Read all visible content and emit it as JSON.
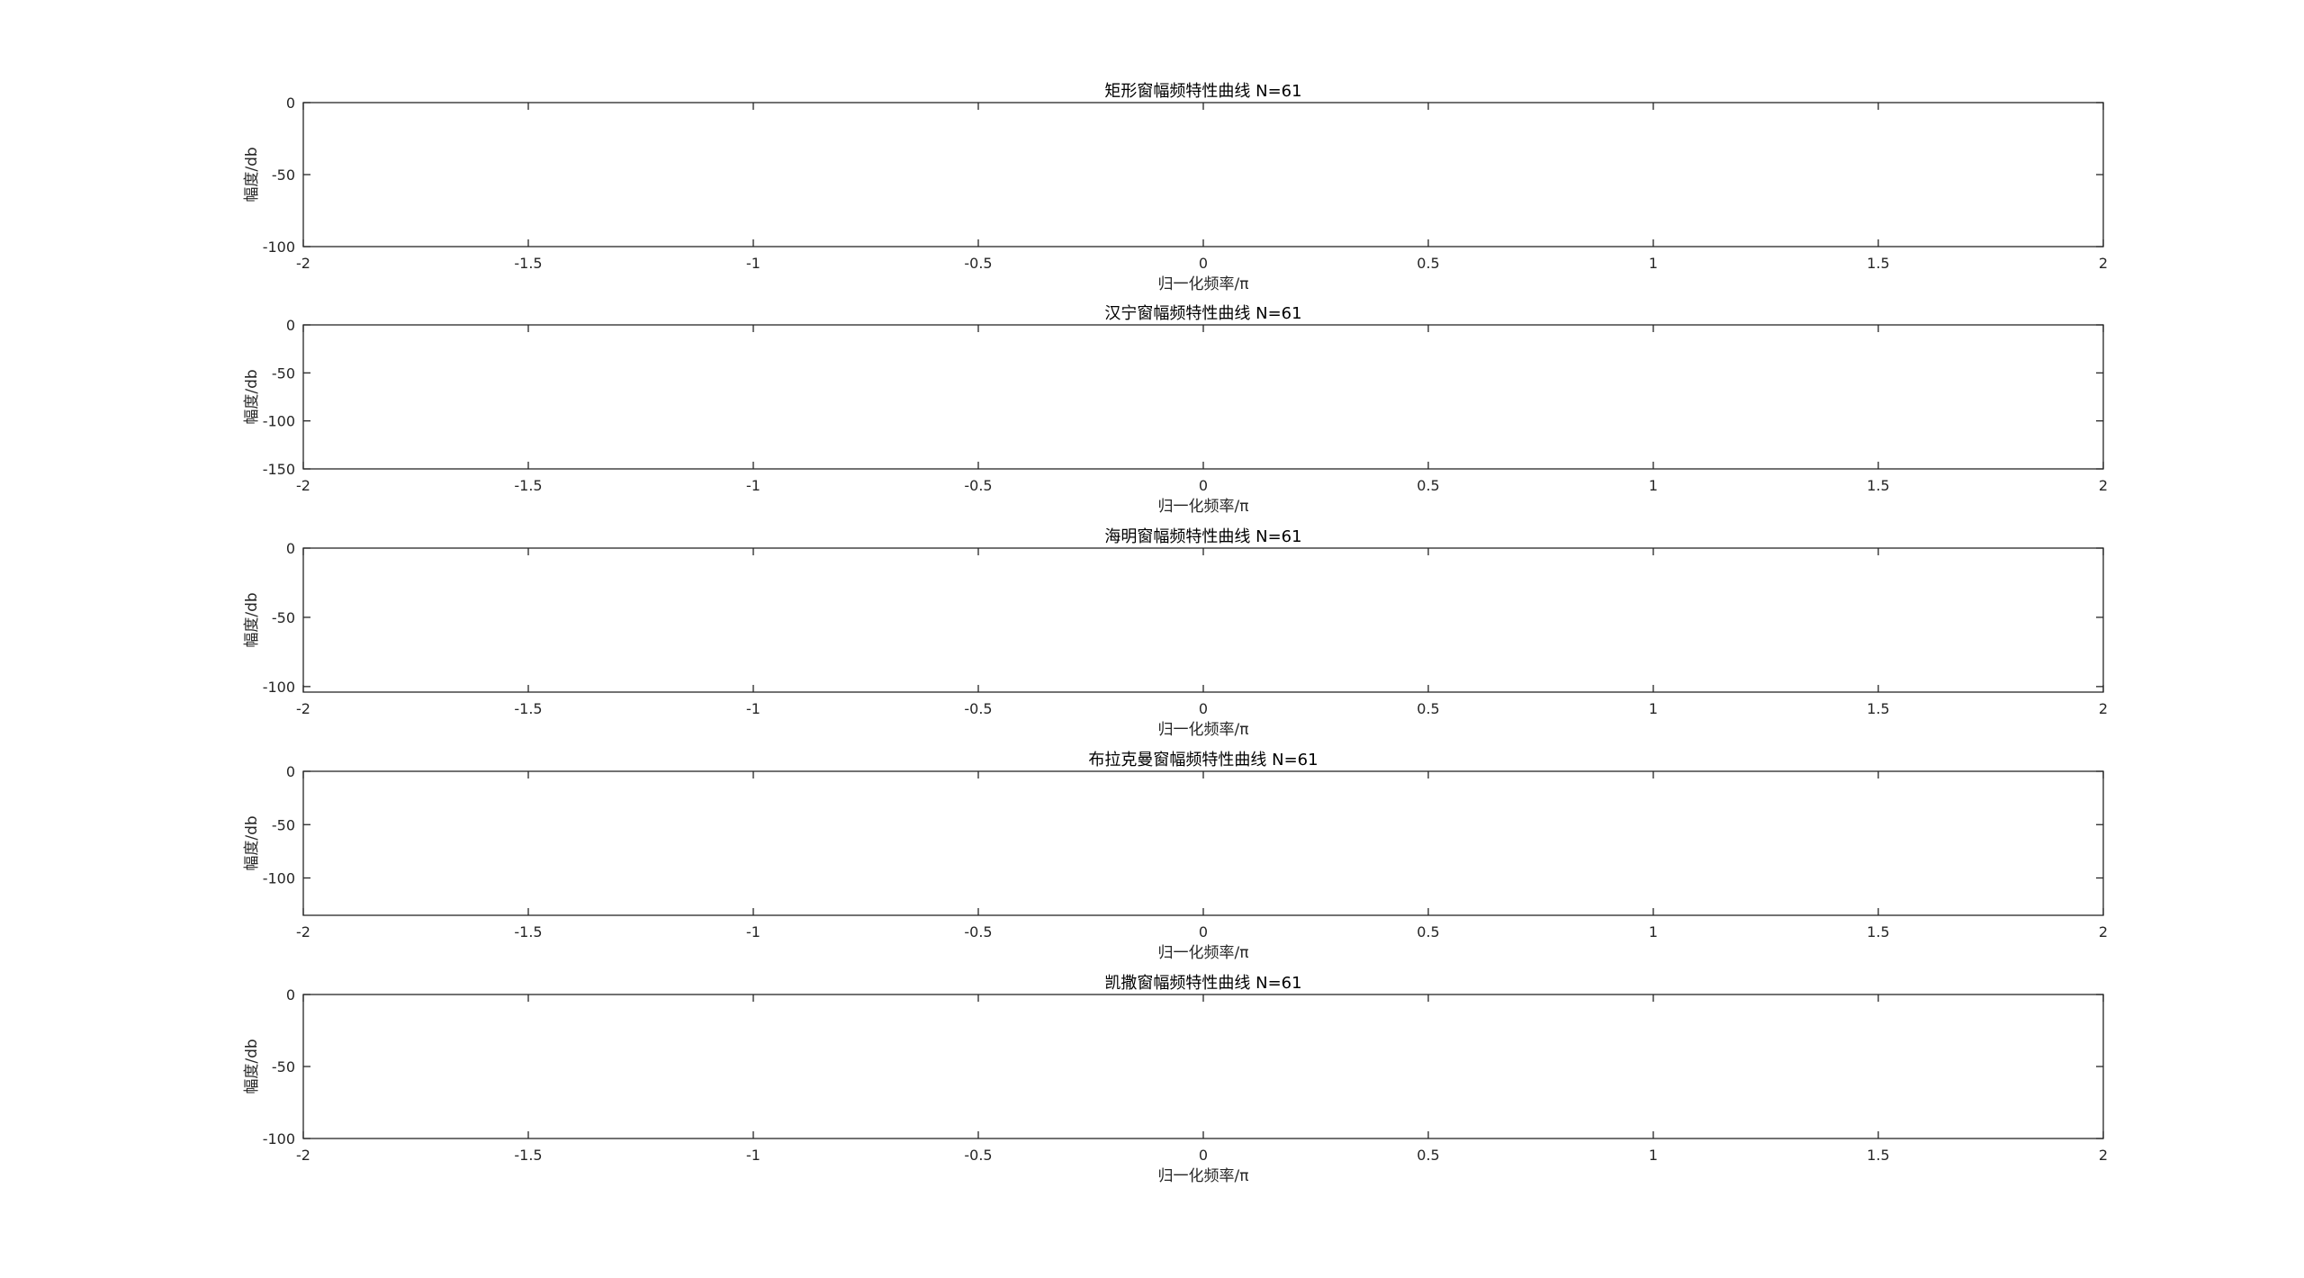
{
  "chart_data": [
    {
      "type": "line",
      "title": "矩形窗幅频特性曲线 N=61",
      "xlabel": "归一化频率/π",
      "ylabel": "幅度/db",
      "window": "rectangular",
      "N": 61,
      "xlim": [
        -2,
        2
      ],
      "ylim": [
        -100,
        0
      ],
      "xticks": [
        -2,
        -1.5,
        -1,
        -0.5,
        0,
        0.5,
        1,
        1.5,
        2
      ],
      "xtick_labels": [
        "-2",
        "-1.5",
        "-1",
        "-0.5",
        "0",
        "0.5",
        "1",
        "1.5",
        "2"
      ],
      "yticks": [
        0,
        -50,
        -100
      ],
      "ytick_labels": [
        "0",
        "-50",
        "-100"
      ],
      "grid": true,
      "color": "#0072bd",
      "series": [
        {
          "name": "",
          "values": []
        }
      ]
    },
    {
      "type": "line",
      "title": "汉宁窗幅频特性曲线 N=61",
      "xlabel": "归一化频率/π",
      "ylabel": "幅度/db",
      "window": "hanning",
      "N": 61,
      "xlim": [
        -2,
        2
      ],
      "ylim": [
        -150,
        0
      ],
      "xticks": [
        -2,
        -1.5,
        -1,
        -0.5,
        0,
        0.5,
        1,
        1.5,
        2
      ],
      "xtick_labels": [
        "-2",
        "-1.5",
        "-1",
        "-0.5",
        "0",
        "0.5",
        "1",
        "1.5",
        "2"
      ],
      "yticks": [
        0,
        -50,
        -100,
        -150
      ],
      "ytick_labels": [
        "0",
        "-50",
        "-100",
        "-150"
      ],
      "grid": true,
      "color": "#0072bd",
      "series": [
        {
          "name": "",
          "values": []
        }
      ]
    },
    {
      "type": "line",
      "title": "海明窗幅频特性曲线 N=61",
      "xlabel": "归一化频率/π",
      "ylabel": "幅度/db",
      "window": "hamming",
      "N": 61,
      "xlim": [
        -2,
        2
      ],
      "ylim": [
        -104,
        0
      ],
      "xticks": [
        -2,
        -1.5,
        -1,
        -0.5,
        0,
        0.5,
        1,
        1.5,
        2
      ],
      "xtick_labels": [
        "-2",
        "-1.5",
        "-1",
        "-0.5",
        "0",
        "0.5",
        "1",
        "1.5",
        "2"
      ],
      "yticks": [
        0,
        -50,
        -100
      ],
      "ytick_labels": [
        "0",
        "-50",
        "-100"
      ],
      "grid": true,
      "color": "#0072bd",
      "series": [
        {
          "name": "",
          "values": []
        }
      ]
    },
    {
      "type": "line",
      "title": "布拉克曼窗幅频特性曲线 N=61",
      "xlabel": "归一化频率/π",
      "ylabel": "幅度/db",
      "window": "blackman",
      "N": 61,
      "xlim": [
        -2,
        2
      ],
      "ylim": [
        -135,
        0
      ],
      "xticks": [
        -2,
        -1.5,
        -1,
        -0.5,
        0,
        0.5,
        1,
        1.5,
        2
      ],
      "xtick_labels": [
        "-2",
        "-1.5",
        "-1",
        "-0.5",
        "0",
        "0.5",
        "1",
        "1.5",
        "2"
      ],
      "yticks": [
        0,
        -50,
        -100
      ],
      "ytick_labels": [
        "0",
        "-50",
        "-100"
      ],
      "grid": true,
      "color": "#0072bd",
      "series": [
        {
          "name": "",
          "values": []
        }
      ]
    },
    {
      "type": "line",
      "title": "凯撒窗幅频特性曲线 N=61",
      "xlabel": "归一化频率/π",
      "ylabel": "幅度/db",
      "window": "kaiser",
      "N": 61,
      "xlim": [
        -2,
        2
      ],
      "ylim": [
        -100,
        0
      ],
      "xticks": [
        -2,
        -1.5,
        -1,
        -0.5,
        0,
        0.5,
        1,
        1.5,
        2
      ],
      "xtick_labels": [
        "-2",
        "-1.5",
        "-1",
        "-0.5",
        "0",
        "0.5",
        "1",
        "1.5",
        "2"
      ],
      "yticks": [
        0,
        -50,
        -100
      ],
      "ytick_labels": [
        "0",
        "-50",
        "-100"
      ],
      "grid": true,
      "color": "#0072bd",
      "series": [
        {
          "name": "",
          "values": []
        }
      ]
    }
  ]
}
